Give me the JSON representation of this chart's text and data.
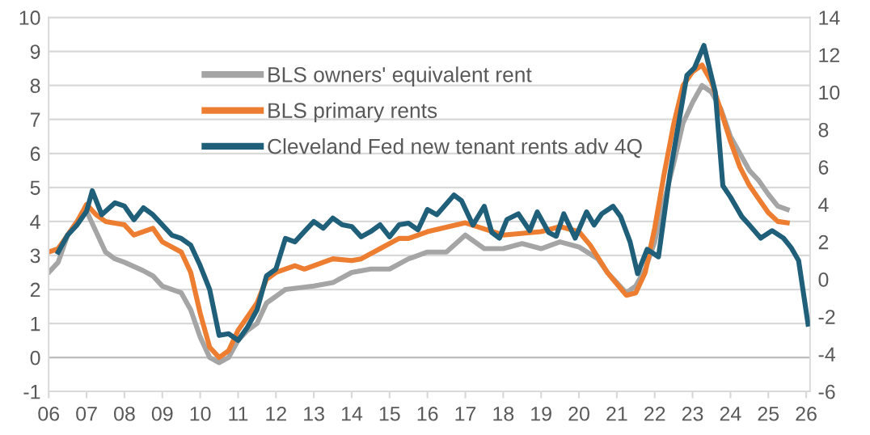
{
  "chart_data": {
    "type": "line",
    "xlim": [
      2006,
      2026.1
    ],
    "xticks": [
      {
        "value": 2006,
        "label": "06"
      },
      {
        "value": 2007,
        "label": "07"
      },
      {
        "value": 2008,
        "label": "08"
      },
      {
        "value": 2009,
        "label": "09"
      },
      {
        "value": 2010,
        "label": "10"
      },
      {
        "value": 2011,
        "label": "11"
      },
      {
        "value": 2012,
        "label": "12"
      },
      {
        "value": 2013,
        "label": "13"
      },
      {
        "value": 2014,
        "label": "14"
      },
      {
        "value": 2015,
        "label": "15"
      },
      {
        "value": 2016,
        "label": "16"
      },
      {
        "value": 2017,
        "label": "17"
      },
      {
        "value": 2018,
        "label": "18"
      },
      {
        "value": 2019,
        "label": "19"
      },
      {
        "value": 2020,
        "label": "20"
      },
      {
        "value": 2021,
        "label": "21"
      },
      {
        "value": 2022,
        "label": "22"
      },
      {
        "value": 2023,
        "label": "23"
      },
      {
        "value": 2024,
        "label": "24"
      },
      {
        "value": 2025,
        "label": "25"
      },
      {
        "value": 2026,
        "label": "26"
      }
    ],
    "ylim": [
      -1,
      10
    ],
    "yticks": [
      -1,
      0,
      1,
      2,
      3,
      4,
      5,
      6,
      7,
      8,
      9,
      10
    ],
    "y2lim": [
      -6,
      14
    ],
    "y2ticks": [
      -6,
      -4,
      -2,
      0,
      2,
      4,
      6,
      8,
      10,
      12,
      14
    ],
    "grid": "y",
    "legend": "top left",
    "marker": "none",
    "line_style": "solid",
    "series": [
      {
        "name": "BLS owners' equivalent rent",
        "color": "#a5a5a5",
        "x": [
          2006,
          2006.25,
          2006.5,
          2006.75,
          2007,
          2007.25,
          2007.5,
          2007.75,
          2008,
          2008.5,
          2008.75,
          2009,
          2009.5,
          2009.75,
          2010,
          2010.25,
          2010.5,
          2010.75,
          2011,
          2011.25,
          2011.5,
          2011.75,
          2012,
          2012.25,
          2013,
          2013.5,
          2014,
          2014.5,
          2015,
          2015.5,
          2016,
          2016.5,
          2017,
          2017.5,
          2018,
          2018.5,
          2019,
          2019.5,
          2020,
          2020.5,
          2020.75,
          2021.25,
          2021.5,
          2021.75,
          2022,
          2022.25,
          2022.5,
          2022.75,
          2023,
          2023.25,
          2023.5,
          2023.75,
          2024,
          2024.25,
          2024.5,
          2024.75,
          2025,
          2025.25,
          2025.5
        ],
        "values": [
          2.5,
          2.8,
          3.6,
          4.0,
          4.3,
          3.7,
          3.1,
          2.9,
          2.8,
          2.55,
          2.4,
          2.1,
          1.9,
          1.4,
          0.6,
          0.0,
          -0.15,
          0.0,
          0.5,
          0.8,
          1.0,
          1.6,
          1.8,
          2.0,
          2.1,
          2.2,
          2.5,
          2.6,
          2.6,
          2.9,
          3.1,
          3.1,
          3.6,
          3.2,
          3.2,
          3.35,
          3.2,
          3.4,
          3.25,
          2.9,
          2.5,
          1.9,
          2.1,
          2.6,
          3.4,
          4.6,
          5.7,
          6.9,
          7.5,
          8.0,
          7.8,
          7.3,
          6.5,
          6.0,
          5.5,
          5.2,
          4.8,
          4.45,
          4.35
        ]
      },
      {
        "name": "BLS primary rents",
        "color": "#ed7d31",
        "x": [
          2006,
          2006.25,
          2006.5,
          2006.75,
          2007,
          2007.25,
          2007.5,
          2008,
          2008.25,
          2008.75,
          2009,
          2009.5,
          2009.75,
          2010,
          2010.25,
          2010.5,
          2010.75,
          2011,
          2011.25,
          2011.5,
          2011.75,
          2012,
          2012.5,
          2012.75,
          2013.25,
          2013.5,
          2014,
          2014.25,
          2014.75,
          2015.25,
          2015.5,
          2016,
          2017,
          2018,
          2019,
          2019.5,
          2020,
          2020.3,
          2020.75,
          2021.25,
          2021.5,
          2021.75,
          2022,
          2022.25,
          2022.5,
          2022.75,
          2023,
          2023.25,
          2023.5,
          2023.75,
          2024,
          2024.25,
          2024.5,
          2024.75,
          2025,
          2025.25,
          2025.5
        ],
        "values": [
          3.1,
          3.2,
          3.6,
          4.0,
          4.5,
          4.2,
          4.0,
          3.9,
          3.6,
          3.8,
          3.4,
          3.1,
          2.5,
          1.3,
          0.3,
          0.0,
          0.2,
          0.8,
          1.2,
          1.6,
          2.3,
          2.5,
          2.7,
          2.6,
          2.8,
          2.9,
          2.85,
          2.9,
          3.2,
          3.5,
          3.5,
          3.7,
          3.96,
          3.6,
          3.7,
          3.85,
          3.7,
          3.3,
          2.5,
          1.83,
          1.9,
          2.5,
          3.8,
          5.4,
          6.85,
          8.0,
          8.4,
          8.6,
          8.1,
          7.25,
          6.36,
          5.6,
          5.06,
          4.66,
          4.26,
          4.0,
          3.96
        ]
      },
      {
        "name": "Cleveland Fed new tenant rents adv 4Q",
        "color": "#1f5f7a",
        "axis": "y2",
        "x": [
          2006.25,
          2006.5,
          2006.75,
          2007,
          2007.15,
          2007.4,
          2007.75,
          2008,
          2008.25,
          2008.5,
          2008.75,
          2009,
          2009.25,
          2009.5,
          2009.75,
          2010,
          2010.25,
          2010.5,
          2010.75,
          2011,
          2011.25,
          2011.5,
          2011.75,
          2012,
          2012.25,
          2012.5,
          2012.75,
          2013,
          2013.25,
          2013.5,
          2013.75,
          2014,
          2014.25,
          2014.5,
          2014.75,
          2015,
          2015.25,
          2015.5,
          2015.75,
          2016,
          2016.25,
          2016.7,
          2016.9,
          2017.2,
          2017.5,
          2017.7,
          2017.9,
          2018.1,
          2018.4,
          2018.7,
          2018.9,
          2019.2,
          2019.4,
          2019.6,
          2019.9,
          2020.2,
          2020.4,
          2020.6,
          2020.9,
          2021.1,
          2021.35,
          2021.55,
          2021.8,
          2022.1,
          2022.4,
          2022.85,
          2023.05,
          2023.3,
          2023.6,
          2023.8,
          2024,
          2024.3,
          2024.5,
          2024.8,
          2025.1,
          2025.4,
          2025.6,
          2025.8,
          2026.05
        ],
        "values": [
          1.45,
          2.36,
          2.91,
          3.64,
          4.73,
          3.45,
          4.09,
          3.91,
          3.18,
          3.82,
          3.45,
          2.91,
          2.36,
          2.18,
          1.82,
          0.73,
          -0.55,
          -3.0,
          -2.91,
          -3.27,
          -2.55,
          -1.64,
          0.18,
          0.55,
          2.18,
          2.0,
          2.55,
          3.09,
          2.73,
          3.27,
          2.91,
          2.82,
          2.27,
          2.55,
          2.91,
          2.27,
          2.91,
          3.0,
          2.64,
          3.73,
          3.45,
          4.5,
          4.2,
          2.9,
          3.9,
          2.5,
          2.2,
          3.2,
          3.5,
          2.6,
          3.6,
          2.5,
          2.3,
          3.5,
          2.2,
          3.6,
          2.9,
          3.5,
          3.9,
          3.35,
          2.0,
          0.3,
          1.6,
          1.2,
          5.6,
          10.9,
          11.3,
          12.5,
          10.0,
          5.0,
          4.4,
          3.35,
          2.9,
          2.2,
          2.6,
          2.2,
          1.7,
          1.0,
          -2.4
        ]
      }
    ]
  }
}
